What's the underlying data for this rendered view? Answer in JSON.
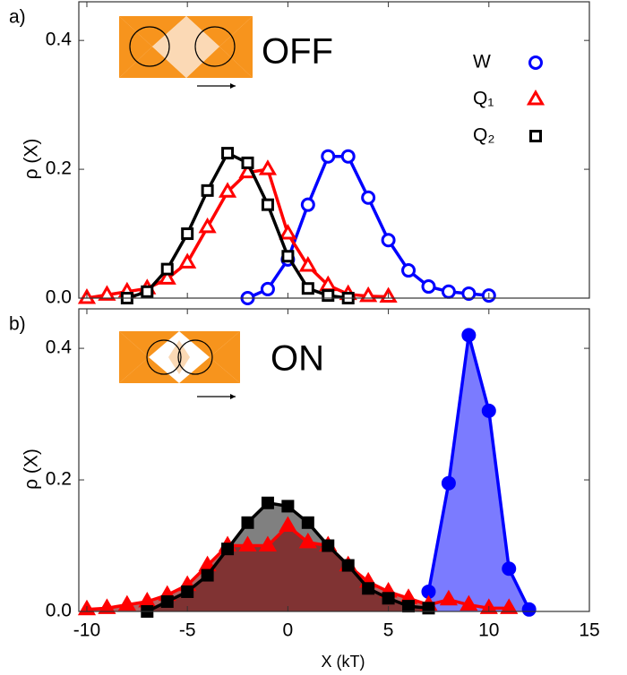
{
  "chart_data": [
    {
      "type": "line",
      "panel_label": "a)",
      "annotation": "OFF",
      "ylabel": "ρ (X)",
      "xlim": [
        -10.4,
        15
      ],
      "ylim": [
        0,
        0.46
      ],
      "yticks": [
        {
          "value": 0,
          "label": "0.0"
        },
        0.2,
        0.4
      ],
      "legend": "upper right",
      "marker_fill": "open",
      "series": [
        {
          "name": "W",
          "color": "#0000ff",
          "marker": "circle",
          "x": [
            -2,
            -1,
            0,
            1,
            2,
            3,
            4,
            5,
            6,
            7,
            8,
            9,
            10
          ],
          "values": [
            0.0,
            0.014,
            0.06,
            0.145,
            0.22,
            0.22,
            0.156,
            0.09,
            0.043,
            0.018,
            0.01,
            0.007,
            0.004
          ]
        },
        {
          "name": "Q₁",
          "color": "#ff0000",
          "marker": "triangle",
          "x": [
            -10,
            -9,
            -8,
            -7,
            -6,
            -5,
            -4,
            -3,
            -2,
            -1,
            0,
            1,
            2,
            3,
            4,
            5
          ],
          "values": [
            0.0,
            0.005,
            0.01,
            0.015,
            0.03,
            0.055,
            0.11,
            0.165,
            0.195,
            0.2,
            0.1,
            0.05,
            0.02,
            0.006,
            0.003,
            0.002
          ]
        },
        {
          "name": "Q₂",
          "color": "#000000",
          "marker": "square",
          "x": [
            -8,
            -7,
            -6,
            -5,
            -4,
            -3,
            -2,
            -1,
            0,
            1,
            2,
            3
          ],
          "values": [
            0.0,
            0.01,
            0.045,
            0.1,
            0.167,
            0.225,
            0.21,
            0.145,
            0.065,
            0.015,
            0.004,
            0.0
          ]
        }
      ]
    },
    {
      "type": "area",
      "panel_label": "b)",
      "annotation": "ON",
      "ylabel": "ρ (X)",
      "xlabel": "X (kT)",
      "xlim": [
        -10.4,
        15
      ],
      "ylim": [
        0,
        0.46
      ],
      "xticks": [
        -10,
        -5,
        0,
        5,
        10,
        15
      ],
      "yticks": [
        {
          "value": 0,
          "label": "0.0"
        },
        0.2,
        0.4
      ],
      "marker_fill": "filled",
      "series": [
        {
          "color": "#000000",
          "fill_color": "#808080",
          "fill_opacity": 1,
          "marker": "square",
          "x": [
            -7,
            -6,
            -5,
            -4,
            -3,
            -2,
            -1,
            0,
            1,
            2,
            3,
            4,
            5,
            6,
            7
          ],
          "values": [
            0.0,
            0.015,
            0.03,
            0.055,
            0.095,
            0.135,
            0.165,
            0.16,
            0.135,
            0.1,
            0.07,
            0.035,
            0.02,
            0.008,
            0.005
          ]
        },
        {
          "color": "#ff0000",
          "fill_color": "#800000",
          "fill_opacity": 0.6,
          "marker": "triangle",
          "x": [
            -10,
            -9,
            -8,
            -7,
            -6,
            -5,
            -4,
            -3,
            -2,
            -1,
            0,
            1,
            2,
            3,
            4,
            5,
            6,
            7,
            8,
            9,
            10,
            11
          ],
          "values": [
            0.003,
            0.005,
            0.01,
            0.015,
            0.025,
            0.04,
            0.07,
            0.1,
            0.1,
            0.1,
            0.13,
            0.105,
            0.1,
            0.07,
            0.045,
            0.03,
            0.02,
            0.01,
            0.018,
            0.01,
            0.005,
            0.005
          ]
        },
        {
          "color": "#0000ff",
          "fill_color": "#7b7bff",
          "fill_opacity": 1,
          "marker": "circle",
          "x": [
            7,
            8,
            9,
            10,
            11,
            12
          ],
          "values": [
            0.03,
            0.195,
            0.42,
            0.305,
            0.065,
            0.003
          ]
        }
      ]
    }
  ]
}
